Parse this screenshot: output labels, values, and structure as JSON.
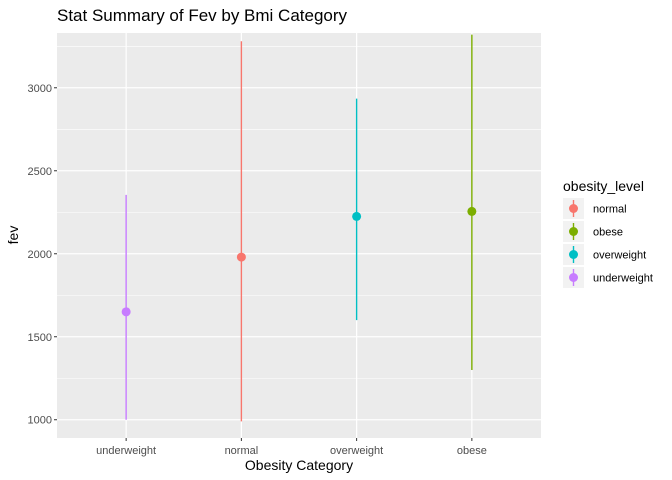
{
  "chart_data": {
    "type": "scatter",
    "title": "Stat Summary of Fev by Bmi Category",
    "xlabel": "Obesity Category",
    "ylabel": "fev",
    "categories": [
      "underweight",
      "normal",
      "overweight",
      "obese"
    ],
    "yticks": [
      1000,
      1500,
      2000,
      2500,
      3000
    ],
    "ylim": [
      890,
      3330
    ],
    "grid": true,
    "legend_placement": "right",
    "legend_title": "obesity_level",
    "series": [
      {
        "name": "normal",
        "color": "#F8766D",
        "category": "normal",
        "y": 1980,
        "ymin": 990,
        "ymax": 3280
      },
      {
        "name": "obese",
        "color": "#7CAE00",
        "category": "obese",
        "y": 2255,
        "ymin": 1300,
        "ymax": 3320
      },
      {
        "name": "overweight",
        "color": "#00BFC4",
        "category": "overweight",
        "y": 2225,
        "ymin": 1600,
        "ymax": 2935
      },
      {
        "name": "underweight",
        "color": "#C77CFF",
        "category": "underweight",
        "y": 1650,
        "ymin": 1000,
        "ymax": 2355
      }
    ]
  }
}
